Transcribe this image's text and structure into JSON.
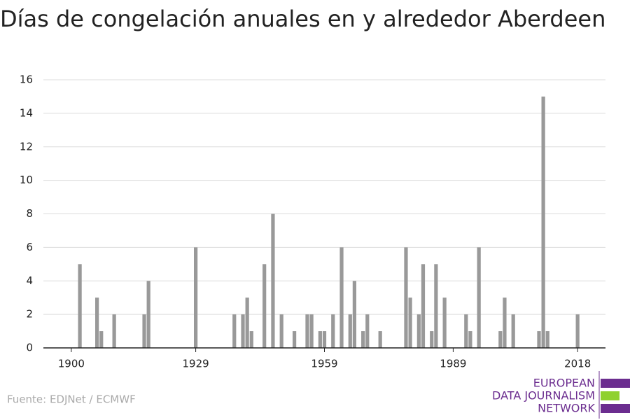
{
  "chart_data": {
    "type": "bar",
    "title": "Días de congelación anuales en y alrededor Aberdeen",
    "x": [
      1902,
      1906,
      1907,
      1910,
      1917,
      1918,
      1929,
      1938,
      1940,
      1941,
      1942,
      1945,
      1947,
      1949,
      1952,
      1955,
      1956,
      1958,
      1959,
      1961,
      1963,
      1965,
      1966,
      1968,
      1969,
      1972,
      1978,
      1979,
      1981,
      1982,
      1984,
      1985,
      1987,
      1992,
      1993,
      1995,
      2000,
      2001,
      2003,
      2009,
      2010,
      2011,
      2018
    ],
    "values": [
      5,
      3,
      1,
      2,
      2,
      4,
      6,
      2,
      2,
      3,
      1,
      5,
      8,
      2,
      1,
      2,
      2,
      1,
      1,
      2,
      6,
      2,
      4,
      1,
      2,
      1,
      6,
      3,
      2,
      5,
      1,
      5,
      3,
      2,
      1,
      6,
      1,
      3,
      2,
      1,
      15,
      1,
      2
    ],
    "color": "#999999",
    "xlim": [
      1893.5,
      2024.5
    ],
    "xticks": [
      1900,
      1929,
      1959,
      1989,
      2018
    ],
    "ylim": [
      0,
      16
    ],
    "yticks": [
      0,
      2,
      4,
      6,
      8,
      10,
      12,
      14,
      16
    ],
    "grid": true
  },
  "source": "Fuente: EDJNet / ECMWF",
  "logo": [
    "EUROPEAN",
    "DATA JOURNALISM",
    "NETWORK"
  ]
}
